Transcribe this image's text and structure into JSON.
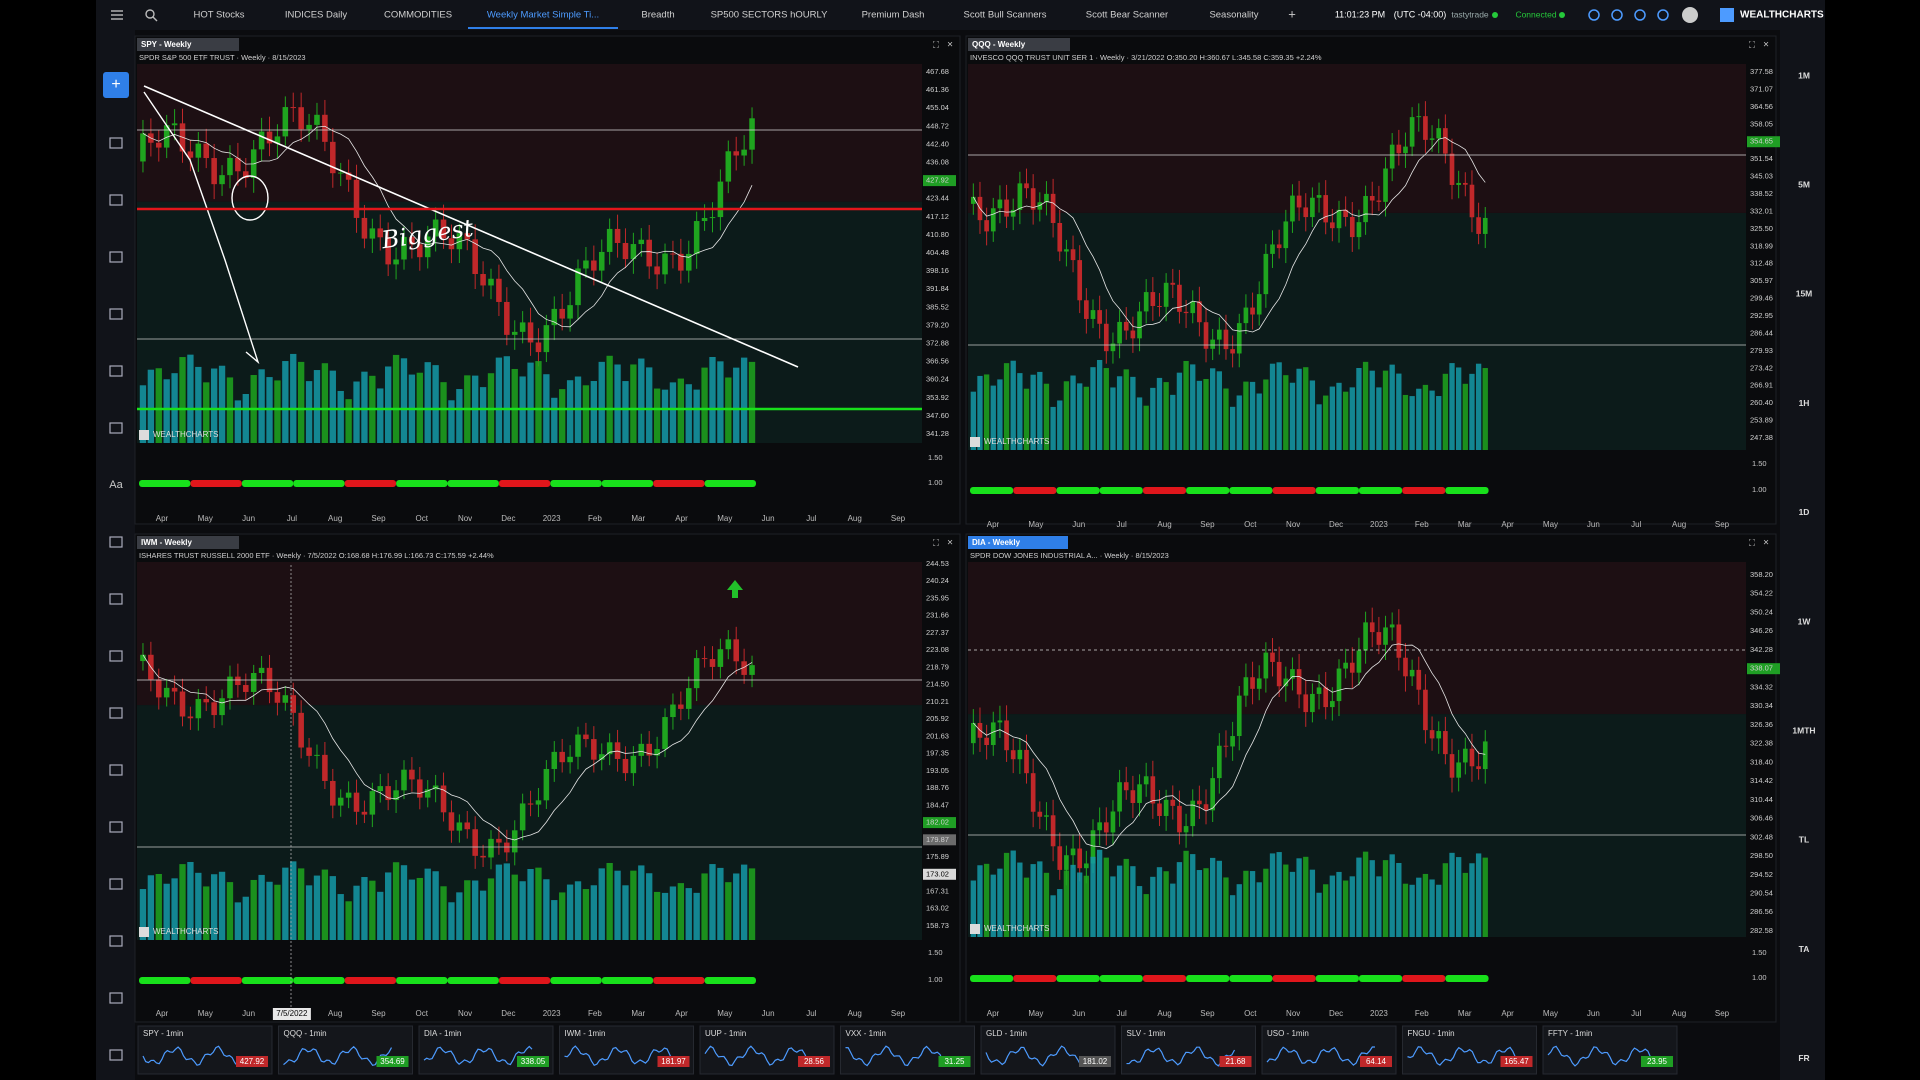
{
  "toolbar": {
    "tabs": [
      "HOT Stocks",
      "INDICES Daily",
      "COMMODITIES",
      "Weekly Market Simple Ti...",
      "Breadth",
      "SP500 SECTORS hOURLY",
      "Premium Dash",
      "Scott Bull Scanners",
      "Scott Bear Scanner",
      "Seasonality"
    ],
    "active_tab": 3,
    "add_tab": "+",
    "time": "11:01:23 PM",
    "timezone": "(UTC -04:00)",
    "broker": "tastytrade",
    "status": "Connected",
    "brand": "WEALTHCHARTS"
  },
  "left_tools": {
    "font_tool": "Aa"
  },
  "timeframes": [
    "1M",
    "5M",
    "15M",
    "1H",
    "1D",
    "1W",
    "1MTH",
    "TL",
    "TA",
    "FR"
  ],
  "panels": [
    {
      "tag": "SPY - Weekly",
      "description": "SPDR S&P 500 ETF TRUST · Weekly · 8/15/2023",
      "watermark": "WEALTHCHARTS",
      "annotation": "Biggest",
      "price_labels": [
        "467.68",
        "461.36",
        "455.04",
        "448.72",
        "442.40",
        "436.08",
        {
          "text": "427.92",
          "color": "#1f9e24"
        },
        "423.44",
        "417.12",
        "410.80",
        "404.48",
        "398.16",
        "391.84",
        "385.52",
        "379.20",
        "372.88",
        "366.56",
        "360.24",
        "353.92",
        "347.60",
        "341.28"
      ],
      "osc_labels": [
        "1.50",
        "1.00"
      ],
      "months": [
        "Apr",
        "May",
        "Jun",
        "Jul",
        "Aug",
        "Sep",
        "Oct",
        "Nov",
        "Dec",
        "2023",
        "Feb",
        "Mar",
        "Apr",
        "May",
        "Jun",
        "Jul",
        "Aug",
        "Sep"
      ]
    },
    {
      "tag": "QQQ - Weekly",
      "description": "INVESCO QQQ TRUST UNIT SER 1 · Weekly · 3/21/2022 O:350.20 H:360.67 L:345.58 C:359.35 +2.24%",
      "watermark": "WEALTHCHARTS",
      "price_labels": [
        "377.58",
        "371.07",
        "364.56",
        "358.05",
        {
          "text": "354.65",
          "color": "#1f9e24"
        },
        "351.54",
        "345.03",
        "338.52",
        "332.01",
        "325.50",
        "318.99",
        "312.48",
        "305.97",
        "299.46",
        "292.95",
        "286.44",
        "279.93",
        "273.42",
        "266.91",
        "260.40",
        "253.89",
        "247.38"
      ],
      "osc_labels": [
        "1.50",
        "1.00"
      ],
      "months": [
        "Apr",
        "May",
        "Jun",
        "Jul",
        "Aug",
        "Sep",
        "Oct",
        "Nov",
        "Dec",
        "2023",
        "Feb",
        "Mar",
        "Apr",
        "May",
        "Jun",
        "Jul",
        "Aug",
        "Sep"
      ]
    },
    {
      "tag": "IWM - Weekly",
      "description": "ISHARES TRUST RUSSELL 2000 ETF · Weekly · 7/5/2022 O:168.68 H:176.99 L:166.73 C:175.59 +2.44%",
      "watermark": "WEALTHCHARTS",
      "price_labels": [
        "244.53",
        "240.24",
        "235.95",
        "231.66",
        "227.37",
        "223.08",
        "218.79",
        "214.50",
        "210.21",
        "205.92",
        "201.63",
        "197.35",
        "193.05",
        "188.76",
        "184.47",
        {
          "text": "182.02",
          "color": "#1f9e24"
        },
        {
          "text": "179.87",
          "color": "#6b6b6b"
        },
        "175.89",
        {
          "text": "173.02",
          "color": "#d9d9d9"
        },
        "167.31",
        "163.02",
        "158.73"
      ],
      "osc_labels": [
        "1.50",
        "1.00"
      ],
      "months": [
        "Apr",
        "May",
        "Jun",
        "7/5/2022",
        "Aug",
        "Sep",
        "Oct",
        "Nov",
        "Dec",
        "2023",
        "Feb",
        "Mar",
        "Apr",
        "May",
        "Jun",
        "Jul",
        "Aug",
        "Sep"
      ]
    },
    {
      "tag": "DIA - Weekly",
      "description": "SPDR DOW JONES INDUSTRIAL A... · Weekly · 8/15/2023",
      "watermark": "WEALTHCHARTS",
      "price_labels": [
        "358.20",
        "354.22",
        "350.24",
        "346.26",
        "342.28",
        {
          "text": "338.07",
          "color": "#1f9e24"
        },
        "334.32",
        "330.34",
        "326.36",
        "322.38",
        "318.40",
        "314.42",
        "310.44",
        "306.46",
        "302.48",
        "298.50",
        "294.52",
        "290.54",
        "286.56",
        "282.58"
      ],
      "osc_labels": [
        "1.50",
        "1.00"
      ],
      "months": [
        "Apr",
        "May",
        "Jun",
        "Jul",
        "Aug",
        "Sep",
        "Oct",
        "Nov",
        "Dec",
        "2023",
        "Feb",
        "Mar",
        "Apr",
        "May",
        "Jun",
        "Jul",
        "Aug",
        "Sep"
      ]
    }
  ],
  "tickers": [
    {
      "name": "SPY - 1min",
      "price": "427.92",
      "color": "#c0282a"
    },
    {
      "name": "QQQ - 1min",
      "price": "354.69",
      "color": "#1f9e24"
    },
    {
      "name": "DIA - 1min",
      "price": "338.05",
      "color": "#1f9e24"
    },
    {
      "name": "IWM - 1min",
      "price": "181.97",
      "color": "#c0282a"
    },
    {
      "name": "UUP - 1min",
      "price": "28.56",
      "color": "#c0282a"
    },
    {
      "name": "VXX - 1min",
      "price": "31.25",
      "color": "#1f9e24"
    },
    {
      "name": "GLD - 1min",
      "price": "181.02",
      "color": "#555555"
    },
    {
      "name": "SLV - 1min",
      "price": "21.68",
      "color": "#c0282a"
    },
    {
      "name": "USO - 1min",
      "price": "64.14",
      "color": "#c0282a"
    },
    {
      "name": "FNGU - 1min",
      "price": "165.47",
      "color": "#c0282a"
    },
    {
      "name": "FFTY - 1min",
      "price": "23.95",
      "color": "#1f9e24"
    }
  ]
}
